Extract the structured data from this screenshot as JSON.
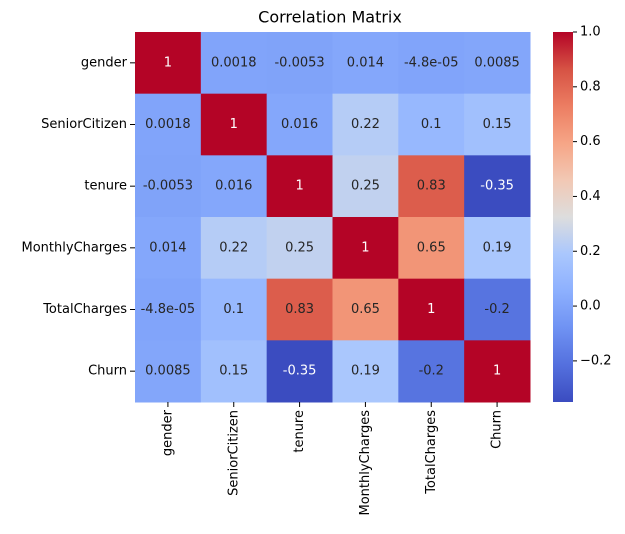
{
  "chart_data": {
    "type": "heatmap",
    "title": "Correlation Matrix",
    "categories": [
      "gender",
      "SeniorCitizen",
      "tenure",
      "MonthlyCharges",
      "TotalCharges",
      "Churn"
    ],
    "y_categories": [
      "gender",
      "SeniorCitizen",
      "tenure",
      "MonthlyCharges",
      "TotalCharges",
      "Churn"
    ],
    "values": [
      [
        1,
        0.0018,
        -0.0053,
        0.014,
        -4.8e-05,
        0.0085
      ],
      [
        0.0018,
        1,
        0.016,
        0.22,
        0.1,
        0.15
      ],
      [
        -0.0053,
        0.016,
        1,
        0.25,
        0.83,
        -0.35
      ],
      [
        0.014,
        0.22,
        0.25,
        1,
        0.65,
        0.19
      ],
      [
        -4.8e-05,
        0.1,
        0.83,
        0.65,
        1,
        -0.2
      ],
      [
        0.0085,
        0.15,
        -0.35,
        0.19,
        -0.2,
        1
      ]
    ],
    "value_labels": [
      [
        "1",
        "0.0018",
        "-0.0053",
        "0.014",
        "-4.8e-05",
        "0.0085"
      ],
      [
        "0.0018",
        "1",
        "0.016",
        "0.22",
        "0.1",
        "0.15"
      ],
      [
        "-0.0053",
        "0.016",
        "1",
        "0.25",
        "0.83",
        "-0.35"
      ],
      [
        "0.014",
        "0.22",
        "0.25",
        "1",
        "0.65",
        "0.19"
      ],
      [
        "-4.8e-05",
        "0.1",
        "0.83",
        "0.65",
        "1",
        "-0.2"
      ],
      [
        "0.0085",
        "0.15",
        "-0.35",
        "0.19",
        "-0.2",
        "1"
      ]
    ],
    "colormap": "coolwarm",
    "zlim": [
      -0.35,
      1
    ],
    "zticks": [
      {
        "value": -0.2,
        "label": "−0.2"
      },
      {
        "value": 0,
        "label": "0.0"
      },
      0.2,
      0.4,
      0.6,
      0.8,
      {
        "value": 1,
        "label": "1.0"
      }
    ]
  }
}
